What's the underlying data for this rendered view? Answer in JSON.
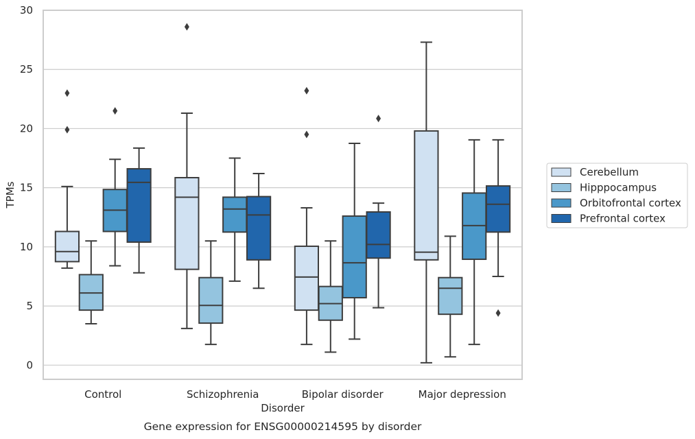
{
  "chart_data": {
    "type": "box",
    "title": "Gene expression for ENSG00000214595 by disorder",
    "xlabel": "Disorder",
    "ylabel": "TPMs",
    "ylim": [
      -1.2,
      30
    ],
    "yticks": [
      0,
      5,
      10,
      15,
      20,
      25,
      30
    ],
    "grid": "horizontal",
    "legend_position": "right",
    "categories": [
      "Control",
      "Schizophrenia",
      "Bipolar disorder",
      "Major depression"
    ],
    "series": [
      {
        "name": "Cerebellum",
        "color": "#d0e1f2",
        "boxes": [
          {
            "q1": 8.75,
            "median": 9.6,
            "q3": 11.3,
            "whisker_low": 8.2,
            "whisker_high": 15.1,
            "outliers": [
              19.9,
              23.0
            ]
          },
          {
            "q1": 8.1,
            "median": 14.2,
            "q3": 15.85,
            "whisker_low": 3.1,
            "whisker_high": 21.3,
            "outliers": [
              28.6
            ]
          },
          {
            "q1": 4.65,
            "median": 7.45,
            "q3": 10.05,
            "whisker_low": 1.75,
            "whisker_high": 13.3,
            "outliers": [
              19.5,
              23.2
            ]
          },
          {
            "q1": 8.9,
            "median": 9.55,
            "q3": 19.8,
            "whisker_low": 0.2,
            "whisker_high": 27.3,
            "outliers": []
          }
        ]
      },
      {
        "name": "Hipppocampus",
        "color": "#94c4df",
        "boxes": [
          {
            "q1": 4.65,
            "median": 6.1,
            "q3": 7.65,
            "whisker_low": 3.5,
            "whisker_high": 10.5,
            "outliers": []
          },
          {
            "q1": 3.55,
            "median": 5.05,
            "q3": 7.4,
            "whisker_low": 1.75,
            "whisker_high": 10.5,
            "outliers": []
          },
          {
            "q1": 3.8,
            "median": 5.2,
            "q3": 6.65,
            "whisker_low": 1.1,
            "whisker_high": 10.5,
            "outliers": []
          },
          {
            "q1": 4.3,
            "median": 6.5,
            "q3": 7.4,
            "whisker_low": 0.7,
            "whisker_high": 10.9,
            "outliers": []
          }
        ]
      },
      {
        "name": "Orbitofrontal cortex",
        "color": "#4a98c9",
        "boxes": [
          {
            "q1": 11.3,
            "median": 13.1,
            "q3": 14.85,
            "whisker_low": 8.4,
            "whisker_high": 17.4,
            "outliers": [
              21.5
            ]
          },
          {
            "q1": 11.25,
            "median": 13.2,
            "q3": 14.2,
            "whisker_low": 7.1,
            "whisker_high": 17.5,
            "outliers": []
          },
          {
            "q1": 5.7,
            "median": 8.65,
            "q3": 12.6,
            "whisker_low": 2.2,
            "whisker_high": 18.75,
            "outliers": []
          },
          {
            "q1": 8.95,
            "median": 11.8,
            "q3": 14.55,
            "whisker_low": 1.75,
            "whisker_high": 19.05,
            "outliers": []
          }
        ]
      },
      {
        "name": "Prefrontal cortex",
        "color": "#2166ac",
        "boxes": [
          {
            "q1": 10.4,
            "median": 15.45,
            "q3": 16.6,
            "whisker_low": 7.8,
            "whisker_high": 18.35,
            "outliers": []
          },
          {
            "q1": 8.9,
            "median": 12.7,
            "q3": 14.25,
            "whisker_low": 6.5,
            "whisker_high": 16.2,
            "outliers": []
          },
          {
            "q1": 9.05,
            "median": 10.2,
            "q3": 12.95,
            "whisker_low": 4.85,
            "whisker_high": 13.7,
            "outliers": [
              20.85
            ]
          },
          {
            "q1": 11.25,
            "median": 13.6,
            "q3": 15.15,
            "whisker_low": 7.5,
            "whisker_high": 19.05,
            "outliers": [
              4.4
            ]
          }
        ]
      }
    ]
  }
}
